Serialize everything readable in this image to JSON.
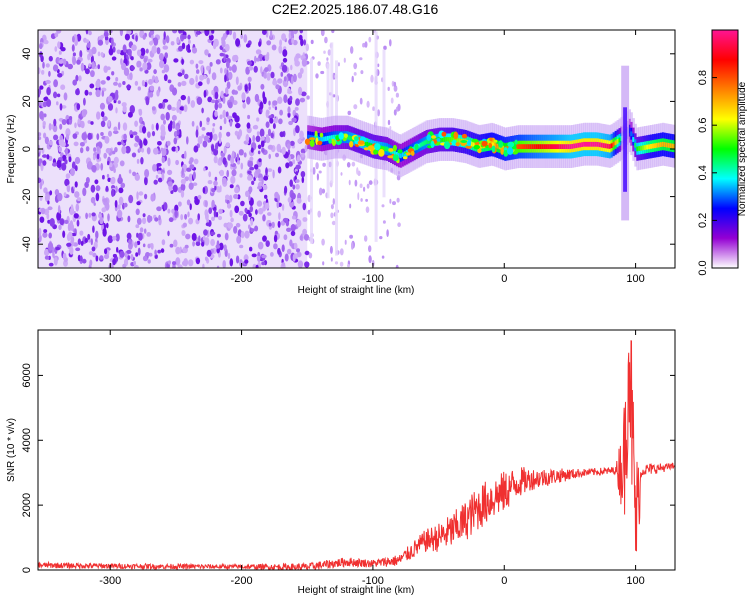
{
  "chart_data": [
    {
      "type": "heatmap",
      "title": "C2E2.2025.186.07.48.G16",
      "xlabel": "Height of straight line (km)",
      "ylabel": "Frequency (Hz)",
      "xlim": [
        -355,
        130
      ],
      "ylim": [
        -50,
        50
      ],
      "xticks": [
        -300,
        -200,
        -100,
        0,
        100
      ],
      "yticks": [
        -40,
        -20,
        0,
        20,
        40
      ],
      "colorbar": {
        "label": "Normalized spectral amplitude",
        "range": [
          0,
          1
        ],
        "ticks": [
          0.0,
          0.2,
          0.4,
          0.6,
          0.8
        ],
        "tick_labels": [
          "0.0",
          "0.2",
          "0.4",
          "0.6",
          "0.8"
        ],
        "colormap": [
          "#ffffff",
          "#9400d3",
          "#0000ff",
          "#00ffff",
          "#00ff00",
          "#ffff00",
          "#ff8000",
          "#ff0000",
          "#ff1493"
        ]
      },
      "regions": [
        {
          "x_range": [
            -355,
            -150
          ],
          "y_range": [
            -50,
            50
          ],
          "amplitude": 0.08,
          "pattern": "scattered-noise"
        },
        {
          "x_range": [
            -150,
            -80
          ],
          "y_range": [
            -50,
            50
          ],
          "amplitude": 0.05,
          "pattern": "sparse-streaks"
        }
      ],
      "ridge": {
        "x": [
          -150,
          -140,
          -130,
          -120,
          -110,
          -100,
          -90,
          -80,
          -70,
          -60,
          -50,
          -40,
          -30,
          -20,
          -10,
          0,
          10,
          20,
          30,
          40,
          50,
          60,
          70,
          80,
          90,
          95,
          100,
          110,
          120,
          130
        ],
        "y": [
          5,
          4,
          5,
          5,
          3,
          1,
          0,
          -3,
          0,
          3,
          4,
          4,
          3,
          1,
          2,
          0,
          1,
          1,
          1,
          1,
          1,
          2,
          2,
          1,
          5,
          8,
          0,
          1,
          2,
          1
        ],
        "amplitude": [
          0.3,
          0.35,
          0.4,
          0.45,
          0.5,
          0.5,
          0.45,
          0.35,
          0.4,
          0.45,
          0.5,
          0.55,
          0.6,
          0.65,
          0.7,
          0.75,
          0.8,
          0.85,
          0.9,
          0.95,
          1.0,
          1.0,
          1.0,
          0.95,
          0.3,
          0.25,
          0.5,
          0.65,
          0.7,
          0.7
        ]
      },
      "spike": {
        "x": 92,
        "y_range": [
          -30,
          35
        ]
      }
    },
    {
      "type": "line",
      "xlabel": "Height of straight line (km)",
      "ylabel": "SNR (10 * v/v)",
      "xlim": [
        -355,
        130
      ],
      "ylim": [
        0,
        7400
      ],
      "xticks": [
        -300,
        -200,
        -100,
        0,
        100
      ],
      "yticks": [
        0,
        2000,
        4000,
        6000
      ],
      "color": "#f03030",
      "x": [
        -355,
        -300,
        -250,
        -200,
        -150,
        -130,
        -120,
        -100,
        -80,
        -70,
        -60,
        -50,
        -40,
        -30,
        -20,
        -10,
        0,
        10,
        20,
        40,
        60,
        80,
        88,
        92,
        95,
        98,
        100,
        105,
        110,
        120,
        130
      ],
      "y": [
        150,
        120,
        110,
        100,
        90,
        200,
        250,
        200,
        300,
        600,
        900,
        1000,
        1200,
        1500,
        1900,
        2200,
        2400,
        2700,
        2800,
        2900,
        3000,
        3050,
        3100,
        3500,
        7200,
        3500,
        1500,
        3100,
        3100,
        3150,
        3200
      ],
      "noise_band": {
        "x": [
          -355,
          -200,
          -120,
          -100,
          -80,
          -60,
          -40,
          -20,
          0,
          20,
          60,
          85,
          90,
          95,
          100,
          105,
          130
        ],
        "amp": [
          90,
          70,
          150,
          120,
          180,
          350,
          550,
          700,
          650,
          350,
          120,
          120,
          1500,
          2800,
          2200,
          200,
          100
        ]
      }
    }
  ]
}
